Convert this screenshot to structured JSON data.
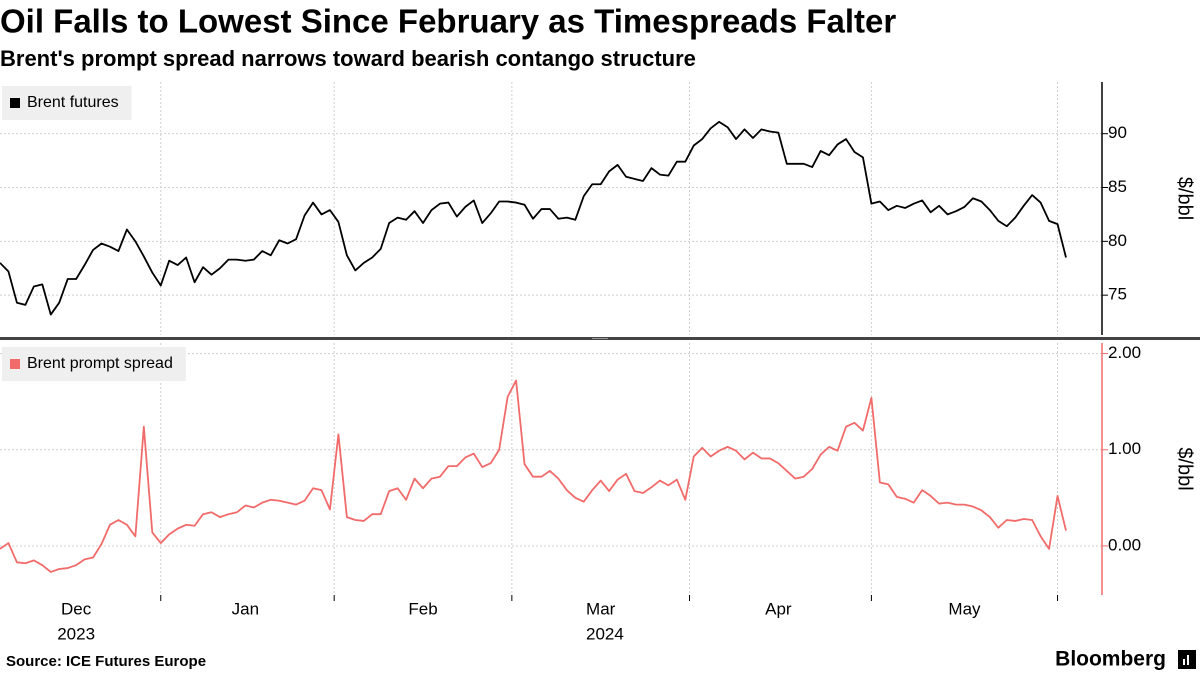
{
  "title": "Oil Falls to Lowest Since February as Timespreads Falter",
  "subtitle": "Brent's prompt spread narrows toward bearish contango structure",
  "source": "Source: ICE Futures Europe",
  "brand": "Bloomberg",
  "chart_data": [
    {
      "type": "line",
      "series": [
        {
          "name": "Brent futures",
          "color": "#000000",
          "values": [
            78,
            77.2,
            74.3,
            74.1,
            75.8,
            76,
            73.2,
            74.3,
            76.5,
            76.5,
            77.8,
            79.2,
            79.8,
            79.5,
            79.1,
            81.1,
            80,
            78.6,
            77.1,
            75.9,
            78.2,
            77.8,
            78.5,
            76.2,
            77.6,
            76.9,
            77.5,
            78.3,
            78.3,
            78.2,
            78.3,
            79.1,
            78.7,
            80.1,
            79.8,
            80.2,
            82.4,
            83.6,
            82.5,
            82.9,
            81.8,
            78.7,
            77.3,
            78,
            78.5,
            79.3,
            81.7,
            82.2,
            82,
            82.8,
            81.7,
            82.9,
            83.5,
            83.6,
            82.3,
            83.2,
            83.8,
            81.7,
            82.6,
            83.7,
            83.7,
            83.6,
            83.4,
            82.1,
            83,
            83,
            82.1,
            82.2,
            82,
            84.2,
            85.3,
            85.3,
            86.5,
            87.1,
            86,
            85.8,
            85.6,
            86.8,
            86.2,
            86.1,
            87.4,
            87.4,
            88.9,
            89.5,
            90.5,
            91.1,
            90.6,
            89.5,
            90.4,
            89.6,
            90.4,
            90.2,
            90.1,
            87.2,
            87.2,
            87.2,
            86.9,
            88.4,
            88,
            89,
            89.5,
            88.3,
            87.8,
            83.5,
            83.7,
            82.9,
            83.3,
            83.1,
            83.5,
            83.8,
            82.7,
            83.3,
            82.5,
            82.8,
            83.2,
            84,
            83.7,
            82.9,
            81.9,
            81.4,
            82.2,
            83.3,
            84.3,
            83.6,
            81.9,
            81.6,
            78.5
          ]
        }
      ],
      "ylim": [
        71.3,
        94.8
      ],
      "yticks": [
        75,
        80,
        85,
        90
      ],
      "ylabel": "$/bbl",
      "grid": true,
      "legend": "top-left"
    },
    {
      "type": "line",
      "categories": [
        null,
        null,
        null,
        null,
        null,
        null,
        null,
        null,
        null,
        "Dec",
        null,
        null,
        null,
        null,
        null,
        null,
        null,
        null,
        null,
        null,
        null,
        null,
        null,
        null,
        null,
        null,
        null,
        null,
        null,
        "Jan",
        null,
        null,
        null,
        null,
        null,
        null,
        null,
        null,
        null,
        null,
        null,
        null,
        null,
        null,
        null,
        null,
        null,
        null,
        null,
        null,
        "Feb",
        null,
        null,
        null,
        null,
        null,
        null,
        null,
        null,
        null,
        null,
        null,
        null,
        null,
        null,
        null,
        null,
        null,
        null,
        null,
        null,
        "Mar",
        null,
        null,
        null,
        null,
        null,
        null,
        null,
        null,
        null,
        null,
        null,
        null,
        null,
        null,
        null,
        null,
        null,
        null,
        null,
        null,
        "Apr",
        null,
        null,
        null,
        null,
        null,
        null,
        null,
        null,
        null,
        null,
        null,
        null,
        null,
        null,
        null,
        null,
        null,
        null,
        null,
        null,
        null,
        "May",
        null,
        null,
        null,
        null,
        null,
        null,
        null,
        null,
        null,
        null,
        null,
        null
      ],
      "year_labels": [
        "2023",
        "2024"
      ],
      "series": [
        {
          "name": "Brent prompt spread",
          "color": "#f26b6b",
          "values": [
            -0.03,
            0.03,
            -0.17,
            -0.18,
            -0.15,
            -0.2,
            -0.27,
            -0.24,
            -0.23,
            -0.2,
            -0.14,
            -0.12,
            0.02,
            0.22,
            0.27,
            0.22,
            0.1,
            1.24,
            0.14,
            0.03,
            0.12,
            0.18,
            0.22,
            0.21,
            0.33,
            0.35,
            0.3,
            0.33,
            0.35,
            0.42,
            0.4,
            0.45,
            0.48,
            0.47,
            0.45,
            0.43,
            0.47,
            0.6,
            0.58,
            0.38,
            1.16,
            0.3,
            0.27,
            0.26,
            0.33,
            0.33,
            0.57,
            0.6,
            0.48,
            0.7,
            0.6,
            0.7,
            0.72,
            0.83,
            0.83,
            0.92,
            0.96,
            0.82,
            0.86,
            1.0,
            1.55,
            1.72,
            0.85,
            0.72,
            0.72,
            0.78,
            0.7,
            0.58,
            0.5,
            0.46,
            0.58,
            0.68,
            0.57,
            0.69,
            0.75,
            0.57,
            0.55,
            0.61,
            0.68,
            0.63,
            0.69,
            0.48,
            0.93,
            1.02,
            0.93,
            0.99,
            1.03,
            0.99,
            0.9,
            0.97,
            0.91,
            0.91,
            0.86,
            0.78,
            0.7,
            0.72,
            0.8,
            0.95,
            1.03,
            0.99,
            1.24,
            1.28,
            1.2,
            1.54,
            0.66,
            0.64,
            0.51,
            0.49,
            0.45,
            0.58,
            0.52,
            0.44,
            0.45,
            0.43,
            0.43,
            0.41,
            0.37,
            0.3,
            0.19,
            0.27,
            0.26,
            0.28,
            0.27,
            0.1,
            -0.03,
            0.52,
            0.16
          ]
        }
      ],
      "ylim": [
        -0.51,
        2.11
      ],
      "yticks": [
        {
          "value": 0,
          "label": "0.00"
        },
        {
          "value": 1,
          "label": "1.00"
        },
        {
          "value": 2,
          "label": "2.00"
        }
      ],
      "ylabel": "$/bbl",
      "grid": true,
      "legend": "top-left"
    }
  ]
}
